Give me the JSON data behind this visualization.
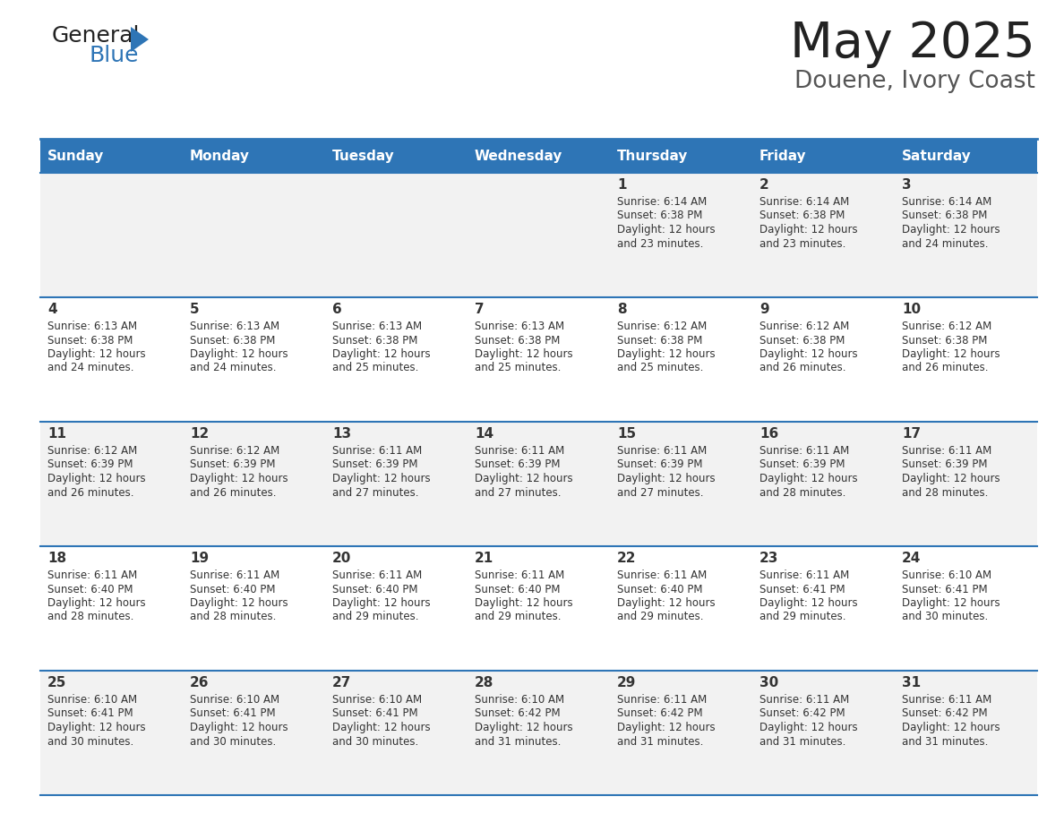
{
  "title": "May 2025",
  "subtitle": "Douene, Ivory Coast",
  "header_color": "#2E75B6",
  "header_text_color": "#FFFFFF",
  "row_odd_color": "#F2F2F2",
  "row_even_color": "#FFFFFF",
  "separator_color": "#2E75B6",
  "day_names": [
    "Sunday",
    "Monday",
    "Tuesday",
    "Wednesday",
    "Thursday",
    "Friday",
    "Saturday"
  ],
  "days": [
    {
      "day": 1,
      "col": 4,
      "row": 0,
      "sunrise": "6:14 AM",
      "sunset": "6:38 PM",
      "daylight": "12 hours and 23 minutes"
    },
    {
      "day": 2,
      "col": 5,
      "row": 0,
      "sunrise": "6:14 AM",
      "sunset": "6:38 PM",
      "daylight": "12 hours and 23 minutes"
    },
    {
      "day": 3,
      "col": 6,
      "row": 0,
      "sunrise": "6:14 AM",
      "sunset": "6:38 PM",
      "daylight": "12 hours and 24 minutes"
    },
    {
      "day": 4,
      "col": 0,
      "row": 1,
      "sunrise": "6:13 AM",
      "sunset": "6:38 PM",
      "daylight": "12 hours and 24 minutes"
    },
    {
      "day": 5,
      "col": 1,
      "row": 1,
      "sunrise": "6:13 AM",
      "sunset": "6:38 PM",
      "daylight": "12 hours and 24 minutes"
    },
    {
      "day": 6,
      "col": 2,
      "row": 1,
      "sunrise": "6:13 AM",
      "sunset": "6:38 PM",
      "daylight": "12 hours and 25 minutes"
    },
    {
      "day": 7,
      "col": 3,
      "row": 1,
      "sunrise": "6:13 AM",
      "sunset": "6:38 PM",
      "daylight": "12 hours and 25 minutes"
    },
    {
      "day": 8,
      "col": 4,
      "row": 1,
      "sunrise": "6:12 AM",
      "sunset": "6:38 PM",
      "daylight": "12 hours and 25 minutes"
    },
    {
      "day": 9,
      "col": 5,
      "row": 1,
      "sunrise": "6:12 AM",
      "sunset": "6:38 PM",
      "daylight": "12 hours and 26 minutes"
    },
    {
      "day": 10,
      "col": 6,
      "row": 1,
      "sunrise": "6:12 AM",
      "sunset": "6:38 PM",
      "daylight": "12 hours and 26 minutes"
    },
    {
      "day": 11,
      "col": 0,
      "row": 2,
      "sunrise": "6:12 AM",
      "sunset": "6:39 PM",
      "daylight": "12 hours and 26 minutes"
    },
    {
      "day": 12,
      "col": 1,
      "row": 2,
      "sunrise": "6:12 AM",
      "sunset": "6:39 PM",
      "daylight": "12 hours and 26 minutes"
    },
    {
      "day": 13,
      "col": 2,
      "row": 2,
      "sunrise": "6:11 AM",
      "sunset": "6:39 PM",
      "daylight": "12 hours and 27 minutes"
    },
    {
      "day": 14,
      "col": 3,
      "row": 2,
      "sunrise": "6:11 AM",
      "sunset": "6:39 PM",
      "daylight": "12 hours and 27 minutes"
    },
    {
      "day": 15,
      "col": 4,
      "row": 2,
      "sunrise": "6:11 AM",
      "sunset": "6:39 PM",
      "daylight": "12 hours and 27 minutes"
    },
    {
      "day": 16,
      "col": 5,
      "row": 2,
      "sunrise": "6:11 AM",
      "sunset": "6:39 PM",
      "daylight": "12 hours and 28 minutes"
    },
    {
      "day": 17,
      "col": 6,
      "row": 2,
      "sunrise": "6:11 AM",
      "sunset": "6:39 PM",
      "daylight": "12 hours and 28 minutes"
    },
    {
      "day": 18,
      "col": 0,
      "row": 3,
      "sunrise": "6:11 AM",
      "sunset": "6:40 PM",
      "daylight": "12 hours and 28 minutes"
    },
    {
      "day": 19,
      "col": 1,
      "row": 3,
      "sunrise": "6:11 AM",
      "sunset": "6:40 PM",
      "daylight": "12 hours and 28 minutes"
    },
    {
      "day": 20,
      "col": 2,
      "row": 3,
      "sunrise": "6:11 AM",
      "sunset": "6:40 PM",
      "daylight": "12 hours and 29 minutes"
    },
    {
      "day": 21,
      "col": 3,
      "row": 3,
      "sunrise": "6:11 AM",
      "sunset": "6:40 PM",
      "daylight": "12 hours and 29 minutes"
    },
    {
      "day": 22,
      "col": 4,
      "row": 3,
      "sunrise": "6:11 AM",
      "sunset": "6:40 PM",
      "daylight": "12 hours and 29 minutes"
    },
    {
      "day": 23,
      "col": 5,
      "row": 3,
      "sunrise": "6:11 AM",
      "sunset": "6:41 PM",
      "daylight": "12 hours and 29 minutes"
    },
    {
      "day": 24,
      "col": 6,
      "row": 3,
      "sunrise": "6:10 AM",
      "sunset": "6:41 PM",
      "daylight": "12 hours and 30 minutes"
    },
    {
      "day": 25,
      "col": 0,
      "row": 4,
      "sunrise": "6:10 AM",
      "sunset": "6:41 PM",
      "daylight": "12 hours and 30 minutes"
    },
    {
      "day": 26,
      "col": 1,
      "row": 4,
      "sunrise": "6:10 AM",
      "sunset": "6:41 PM",
      "daylight": "12 hours and 30 minutes"
    },
    {
      "day": 27,
      "col": 2,
      "row": 4,
      "sunrise": "6:10 AM",
      "sunset": "6:41 PM",
      "daylight": "12 hours and 30 minutes"
    },
    {
      "day": 28,
      "col": 3,
      "row": 4,
      "sunrise": "6:10 AM",
      "sunset": "6:42 PM",
      "daylight": "12 hours and 31 minutes"
    },
    {
      "day": 29,
      "col": 4,
      "row": 4,
      "sunrise": "6:11 AM",
      "sunset": "6:42 PM",
      "daylight": "12 hours and 31 minutes"
    },
    {
      "day": 30,
      "col": 5,
      "row": 4,
      "sunrise": "6:11 AM",
      "sunset": "6:42 PM",
      "daylight": "12 hours and 31 minutes"
    },
    {
      "day": 31,
      "col": 6,
      "row": 4,
      "sunrise": "6:11 AM",
      "sunset": "6:42 PM",
      "daylight": "12 hours and 31 minutes"
    }
  ]
}
